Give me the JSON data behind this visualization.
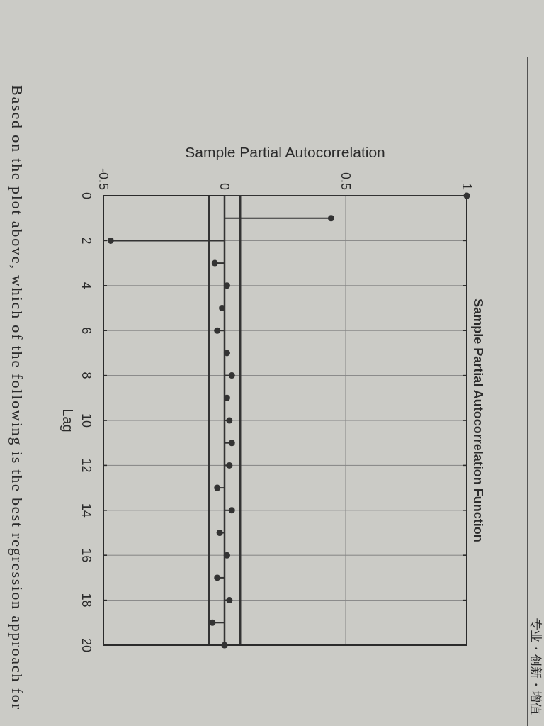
{
  "chart_data": {
    "type": "lollipop",
    "orientation": "horizontal",
    "title": "Sample Partial Autocorrelation Function",
    "xlabel": "Sample Partial Autocorrelation",
    "ylabel": "Lag",
    "categories": [
      "0",
      null,
      "2",
      null,
      "4",
      null,
      "6",
      null,
      "8",
      null,
      "10",
      null,
      "12",
      null,
      "14",
      null,
      "16",
      null,
      "18",
      null,
      "20"
    ],
    "values": [
      1,
      0.44,
      -0.47,
      -0.04,
      0.01,
      -0.01,
      -0.03,
      0.01,
      0.03,
      0.01,
      0.02,
      0.03,
      0.02,
      -0.03,
      0.03,
      -0.02,
      0.01,
      -0.03,
      0.02,
      -0.05,
      0
    ],
    "color": "#333333",
    "marker": "circle",
    "xlim": [
      -0.5,
      1
    ],
    "xticks": [
      -0.5,
      0,
      0.5,
      1
    ],
    "grid": true,
    "ref_lines": [
      {
        "axis": "x",
        "value": 0.065,
        "color": "#333333"
      },
      {
        "axis": "x",
        "value": -0.065,
        "color": "#333333"
      }
    ],
    "annotations": [
      "Based on the plot above, which of the following is the best regression approach for",
      "专业・创新・增值"
    ]
  }
}
